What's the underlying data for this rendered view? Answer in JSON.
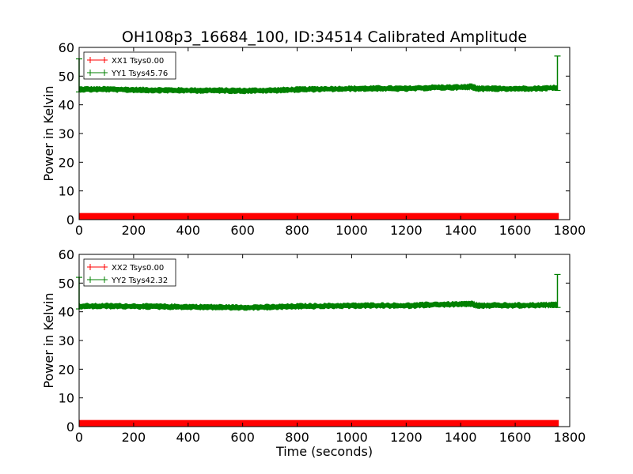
{
  "chart_data": {
    "title": "OH108p3_16684_100, ID:34514 Calibrated Amplitude",
    "xlabel": "Time (seconds)",
    "panels": [
      {
        "type": "line",
        "ylabel": "Power in Kelvin",
        "xlim": [
          0,
          1800
        ],
        "ylim": [
          0,
          60
        ],
        "xticks": [
          "0",
          "200",
          "400",
          "600",
          "800",
          "1000",
          "1200",
          "1400",
          "1600",
          "1800"
        ],
        "yticks": [
          "0",
          "10",
          "20",
          "30",
          "40",
          "50",
          "60"
        ],
        "legend_position": "top-left",
        "series": [
          {
            "name": "XX1 Tsys0.00",
            "color": "#ff0000",
            "x": [
              0,
              1760
            ],
            "y_band": [
              0,
              2.3
            ]
          },
          {
            "name": "YY1 Tsys45.76",
            "color": "#008000",
            "x": [
              0,
              100,
              200,
              300,
              400,
              500,
              600,
              700,
              800,
              900,
              1000,
              1100,
              1200,
              1300,
              1400,
              1440,
              1460,
              1500,
              1600,
              1700,
              1755
            ],
            "y": [
              45.4,
              45.4,
              45.2,
              45.1,
              45.0,
              45.0,
              44.9,
              45.0,
              45.3,
              45.5,
              45.6,
              45.7,
              45.6,
              46.0,
              46.1,
              46.3,
              45.6,
              45.6,
              45.6,
              45.7,
              46.0
            ],
            "spikes": [
              {
                "x": 0,
                "y_low": 44.5,
                "y_high": 56.0
              },
              {
                "x": 1755,
                "y_low": 45.0,
                "y_high": 57.0
              }
            ]
          }
        ]
      },
      {
        "type": "line",
        "ylabel": "Power in Kelvin",
        "xlim": [
          0,
          1800
        ],
        "ylim": [
          0,
          60
        ],
        "xticks": [
          "0",
          "200",
          "400",
          "600",
          "800",
          "1000",
          "1200",
          "1400",
          "1600",
          "1800"
        ],
        "yticks": [
          "0",
          "10",
          "20",
          "30",
          "40",
          "50",
          "60"
        ],
        "legend_position": "top-left",
        "series": [
          {
            "name": "XX2 Tsys0.00",
            "color": "#ff0000",
            "x": [
              0,
              1760
            ],
            "y_band": [
              0,
              2.3
            ]
          },
          {
            "name": "YY2 Tsys42.32",
            "color": "#008000",
            "x": [
              0,
              100,
              200,
              300,
              400,
              500,
              600,
              700,
              800,
              900,
              1000,
              1100,
              1200,
              1300,
              1400,
              1440,
              1460,
              1500,
              1600,
              1700,
              1755
            ],
            "y": [
              41.9,
              42.0,
              41.9,
              41.8,
              41.7,
              41.6,
              41.5,
              41.6,
              41.9,
              42.0,
              42.1,
              42.2,
              42.1,
              42.5,
              42.6,
              42.8,
              42.1,
              42.2,
              42.2,
              42.3,
              42.5
            ],
            "spikes": [
              {
                "x": 0,
                "y_low": 41.0,
                "y_high": 52.0
              },
              {
                "x": 1755,
                "y_low": 41.5,
                "y_high": 53.0
              }
            ]
          }
        ]
      }
    ]
  }
}
